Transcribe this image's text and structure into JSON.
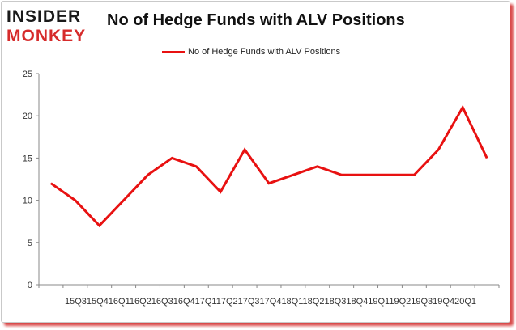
{
  "logo": {
    "line1": "INSIDER",
    "line2": "MONKEY"
  },
  "chart_data": {
    "type": "line",
    "title": "No of Hedge Funds with ALV Positions",
    "xlabel": "",
    "ylabel": "",
    "x_tick_text": "15Q315Q416Q116Q216Q316Q417Q117Q217Q317Q418Q118Q218Q318Q419Q119Q219Q319Q420Q1",
    "categories": [
      "15Q3",
      "15Q4",
      "16Q1",
      "16Q2",
      "16Q3",
      "16Q4",
      "17Q1",
      "17Q2",
      "17Q3",
      "17Q4",
      "18Q1",
      "18Q2",
      "18Q3",
      "18Q4",
      "19Q1",
      "19Q2",
      "19Q3",
      "19Q4",
      "20Q1"
    ],
    "series": [
      {
        "name": "No of Hedge Funds with ALV Positions",
        "color": "#e81111",
        "values": [
          12,
          10,
          7,
          10,
          13,
          15,
          14,
          11,
          16,
          12,
          13,
          14,
          13,
          13,
          13,
          13,
          16,
          21,
          15
        ]
      }
    ],
    "ylim": [
      0,
      25
    ],
    "yticks": [
      0,
      5,
      10,
      15,
      20,
      25
    ],
    "grid": false,
    "legend_position": "top-center"
  }
}
